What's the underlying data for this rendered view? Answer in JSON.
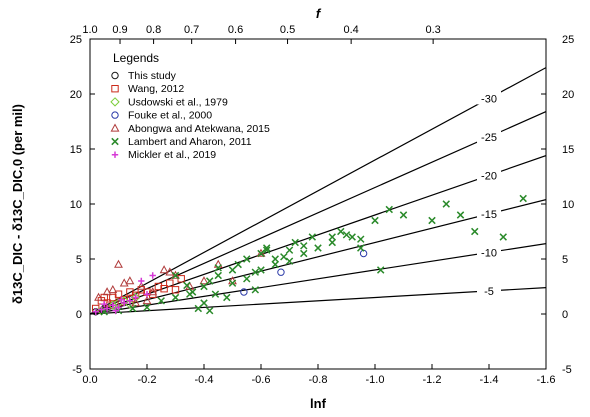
{
  "chart_data": {
    "type": "scatter",
    "xlabel": "lnf",
    "top_xlabel": "f",
    "ylabel": "δ13C_DIC - δ13C_DIC,0 (per mil)",
    "xlim": [
      0,
      -1.6
    ],
    "ylim": [
      -5,
      25
    ],
    "x_ticks": [
      0.0,
      -0.2,
      -0.4,
      -0.6,
      -0.8,
      -1.0,
      -1.2,
      -1.4,
      -1.6
    ],
    "x_tick_labels": [
      "0.0",
      "-0.2",
      "-0.4",
      "-0.6",
      "-0.8",
      "-1.0",
      "-1.2",
      "-1.4",
      "-1.6"
    ],
    "y_ticks": [
      -5,
      0,
      5,
      10,
      15,
      20,
      25
    ],
    "y_tick_labels": [
      "-5",
      "0",
      "5",
      "10",
      "15",
      "20",
      "25"
    ],
    "top_ticks": [
      1.0,
      0.9,
      0.8,
      0.7,
      0.6,
      0.5,
      0.4,
      0.3
    ],
    "top_tick_labels": [
      "1.0",
      "0.9",
      "0.8",
      "0.7",
      "0.6",
      "0.5",
      "0.4",
      "0.3"
    ],
    "legend_title": "Legends",
    "legend_position": "top-left",
    "grid": false,
    "reference_lines": [
      {
        "label": "-30",
        "slope": -14
      },
      {
        "label": "-25",
        "slope": -11.5
      },
      {
        "label": "-20",
        "slope": -9
      },
      {
        "label": "-15",
        "slope": -6.5
      },
      {
        "label": "-10",
        "slope": -4
      },
      {
        "label": "-5",
        "slope": -1.5
      }
    ],
    "series": [
      {
        "name": "This study",
        "marker": "circle",
        "color": "#1a1a1a",
        "x": [
          -0.02,
          -0.05,
          -0.08
        ],
        "y": [
          0.2,
          0.5,
          0.8
        ]
      },
      {
        "name": "Wang, 2012",
        "marker": "square",
        "color": "#cc2a1a",
        "x": [
          -0.02,
          -0.04,
          -0.06,
          -0.08,
          -0.1,
          -0.12,
          -0.14,
          -0.16,
          -0.18,
          -0.2,
          -0.22,
          -0.24,
          -0.26,
          -0.28,
          -0.3,
          -0.32,
          -0.05,
          -0.07,
          -0.11,
          -0.15
        ],
        "y": [
          0.5,
          1.2,
          1.0,
          1.5,
          1.8,
          1.3,
          2.0,
          1.7,
          2.2,
          2.0,
          1.8,
          2.5,
          2.3,
          2.8,
          2.2,
          3.2,
          1.5,
          0.8,
          1.1,
          1.4
        ]
      },
      {
        "name": "Usdowski et al., 1979",
        "marker": "diamond",
        "color": "#7ccd3a",
        "x": [
          -0.04,
          -0.08,
          -0.12,
          -0.16,
          -0.1,
          -0.14
        ],
        "y": [
          0.3,
          0.8,
          1.2,
          1.5,
          1.0,
          0.9
        ]
      },
      {
        "name": "Fouke et al., 2000",
        "marker": "circle",
        "color": "#2b3aa8",
        "x": [
          -0.54,
          -0.67,
          -0.96
        ],
        "y": [
          2.0,
          3.8,
          5.5
        ]
      },
      {
        "name": "Abongwa and Atekwana, 2015",
        "marker": "triangle",
        "color": "#b03b3b",
        "x": [
          -0.03,
          -0.06,
          -0.1,
          -0.14,
          -0.18,
          -0.22,
          -0.26,
          -0.3,
          -0.35,
          -0.4,
          -0.45,
          -0.5,
          -0.12,
          -0.2,
          -0.28,
          -0.6,
          -0.08,
          -0.16
        ],
        "y": [
          1.5,
          2.0,
          4.5,
          3.0,
          2.5,
          2.0,
          4.0,
          3.5,
          2.5,
          3.0,
          4.5,
          3.0,
          2.8,
          1.2,
          3.8,
          5.5,
          2.2,
          1.0
        ]
      },
      {
        "name": "Lambert and Aharon, 2011",
        "marker": "x",
        "color": "#2a8a2a",
        "x": [
          -0.05,
          -0.1,
          -0.15,
          -0.2,
          -0.25,
          -0.3,
          -0.35,
          -0.38,
          -0.4,
          -0.42,
          -0.45,
          -0.48,
          -0.5,
          -0.52,
          -0.55,
          -0.58,
          -0.6,
          -0.62,
          -0.65,
          -0.68,
          -0.7,
          -0.72,
          -0.75,
          -0.78,
          -0.8,
          -0.85,
          -0.88,
          -0.9,
          -0.92,
          -0.95,
          -1.0,
          -1.05,
          -1.1,
          -1.2,
          -1.25,
          -1.3,
          -1.35,
          -1.45,
          -1.52,
          -0.4,
          -0.5,
          -0.6,
          -0.3,
          -0.45,
          -0.55,
          -0.65,
          -0.75,
          -0.85,
          -0.95,
          -1.02,
          -0.42,
          -0.36,
          -0.58,
          -0.7,
          -0.34,
          -0.44,
          -0.62
        ],
        "y": [
          0.2,
          0.3,
          0.5,
          0.6,
          1.2,
          1.5,
          1.8,
          0.5,
          2.5,
          3.0,
          3.5,
          1.5,
          4.0,
          4.5,
          5.0,
          3.8,
          5.5,
          6.0,
          4.5,
          5.2,
          5.8,
          6.5,
          5.5,
          7.0,
          6.0,
          6.5,
          7.5,
          7.2,
          7.0,
          6.8,
          8.5,
          9.5,
          9.0,
          8.5,
          10.0,
          9.0,
          7.5,
          7.0,
          10.5,
          1.0,
          2.8,
          4.0,
          3.5,
          4.2,
          3.2,
          5.0,
          6.2,
          7.0,
          6.0,
          4.0,
          0.3,
          2.0,
          2.2,
          4.8,
          2.6,
          1.8,
          5.8
        ]
      },
      {
        "name": "Mickler et al., 2019",
        "marker": "plus",
        "color": "#d63ad6",
        "x": [
          -0.02,
          -0.04,
          -0.06,
          -0.08,
          -0.1,
          -0.12,
          -0.14,
          -0.16,
          -0.18,
          -0.22,
          -0.2,
          -0.05,
          -0.09,
          -0.11
        ],
        "y": [
          0.2,
          0.4,
          0.5,
          0.8,
          0.6,
          1.0,
          1.2,
          1.5,
          3.0,
          3.5,
          1.8,
          0.9,
          0.3,
          1.3
        ]
      }
    ]
  }
}
